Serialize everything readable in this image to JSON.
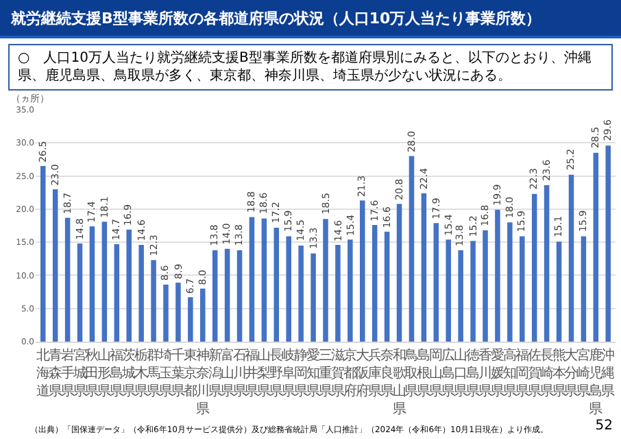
{
  "chart_data": {
    "type": "bar",
    "title": "就労継続支援B型事業所数の各都道府県の状況（人口10万人当たり事業所数）",
    "subtitle": "○　人口10万人当たり就労継続支援B型事業所数を都道府県別にみると、以下のとおり、沖縄県、鹿児島県、鳥取県が多く、東京都、神奈川県、埼玉県が少ない状況にある。",
    "ylabel": "（ヵ所）",
    "categories": [
      "北海道",
      "青森県",
      "岩手県",
      "宮城県",
      "秋田県",
      "山形県",
      "福島県",
      "茨城県",
      "栃木県",
      "群馬県",
      "埼玉県",
      "千葉県",
      "東京都",
      "神奈川県",
      "新潟県",
      "富山県",
      "石川県",
      "福井県",
      "山梨県",
      "長野県",
      "岐阜県",
      "静岡県",
      "愛知県",
      "三重県",
      "滋賀県",
      "京都府",
      "大阪府",
      "兵庫県",
      "奈良県",
      "和歌山県",
      "鳥取県",
      "島根県",
      "岡山県",
      "広島県",
      "山口県",
      "徳島県",
      "香川県",
      "愛媛県",
      "高知県",
      "福岡県",
      "佐賀県",
      "長崎県",
      "熊本県",
      "大分県",
      "宮崎県",
      "鹿児島県",
      "沖縄県"
    ],
    "values": [
      26.5,
      23.0,
      18.7,
      14.8,
      17.4,
      18.1,
      14.7,
      16.9,
      14.6,
      12.3,
      8.6,
      8.9,
      6.7,
      8.0,
      13.8,
      14.0,
      13.8,
      18.8,
      18.6,
      17.2,
      15.9,
      14.5,
      13.3,
      18.5,
      14.6,
      15.4,
      21.3,
      17.6,
      16.6,
      20.8,
      28.0,
      22.4,
      17.9,
      15.4,
      13.8,
      15.2,
      16.8,
      19.9,
      18.0,
      15.9,
      22.3,
      23.6,
      15.1,
      25.2,
      15.9,
      28.5,
      29.6
    ],
    "color": "#4472c4",
    "value_labels": [
      "26.5",
      "23.0",
      "18.7",
      "14.8",
      "17.4",
      "18.1",
      "14.7",
      "16.9",
      "14.6",
      "12.3",
      "8.6",
      "8.9",
      "6.7",
      "8.0",
      "13.8",
      "14.0",
      "13.8",
      "18.8",
      "18.6",
      "17.2",
      "15.9",
      "14.5",
      "13.3",
      "18.5",
      "14.6",
      "15.4",
      "21.3",
      "17.6",
      "16.6",
      "20.8",
      "28.0",
      "22.4",
      "17.9",
      "15.4",
      "13.8",
      "15.2",
      "16.8",
      "19.9",
      "18.0",
      "15.9",
      "22.3",
      "23.6",
      "15.1",
      "25.2",
      "15.9",
      "28.5",
      "29.6"
    ],
    "ylim": [
      0,
      35
    ],
    "yticks": [
      {
        "value": 0,
        "label": "0.0"
      },
      {
        "value": 5,
        "label": "5.0"
      },
      {
        "value": 10,
        "label": "10.0"
      },
      {
        "value": 15,
        "label": "15.0"
      },
      {
        "value": 20,
        "label": "20.0"
      },
      {
        "value": 25,
        "label": "25.0"
      },
      {
        "value": 30,
        "label": "30.0"
      },
      {
        "value": 35,
        "label": "35.0"
      }
    ],
    "grid": "y",
    "legend": false,
    "annotations": [
      "（出典）「国保連データ」（令和6年10月サービス提供分）及び総務省統計局「人口推計」（2024年（令和6年）10月1日現在）より作成。",
      "52"
    ]
  }
}
